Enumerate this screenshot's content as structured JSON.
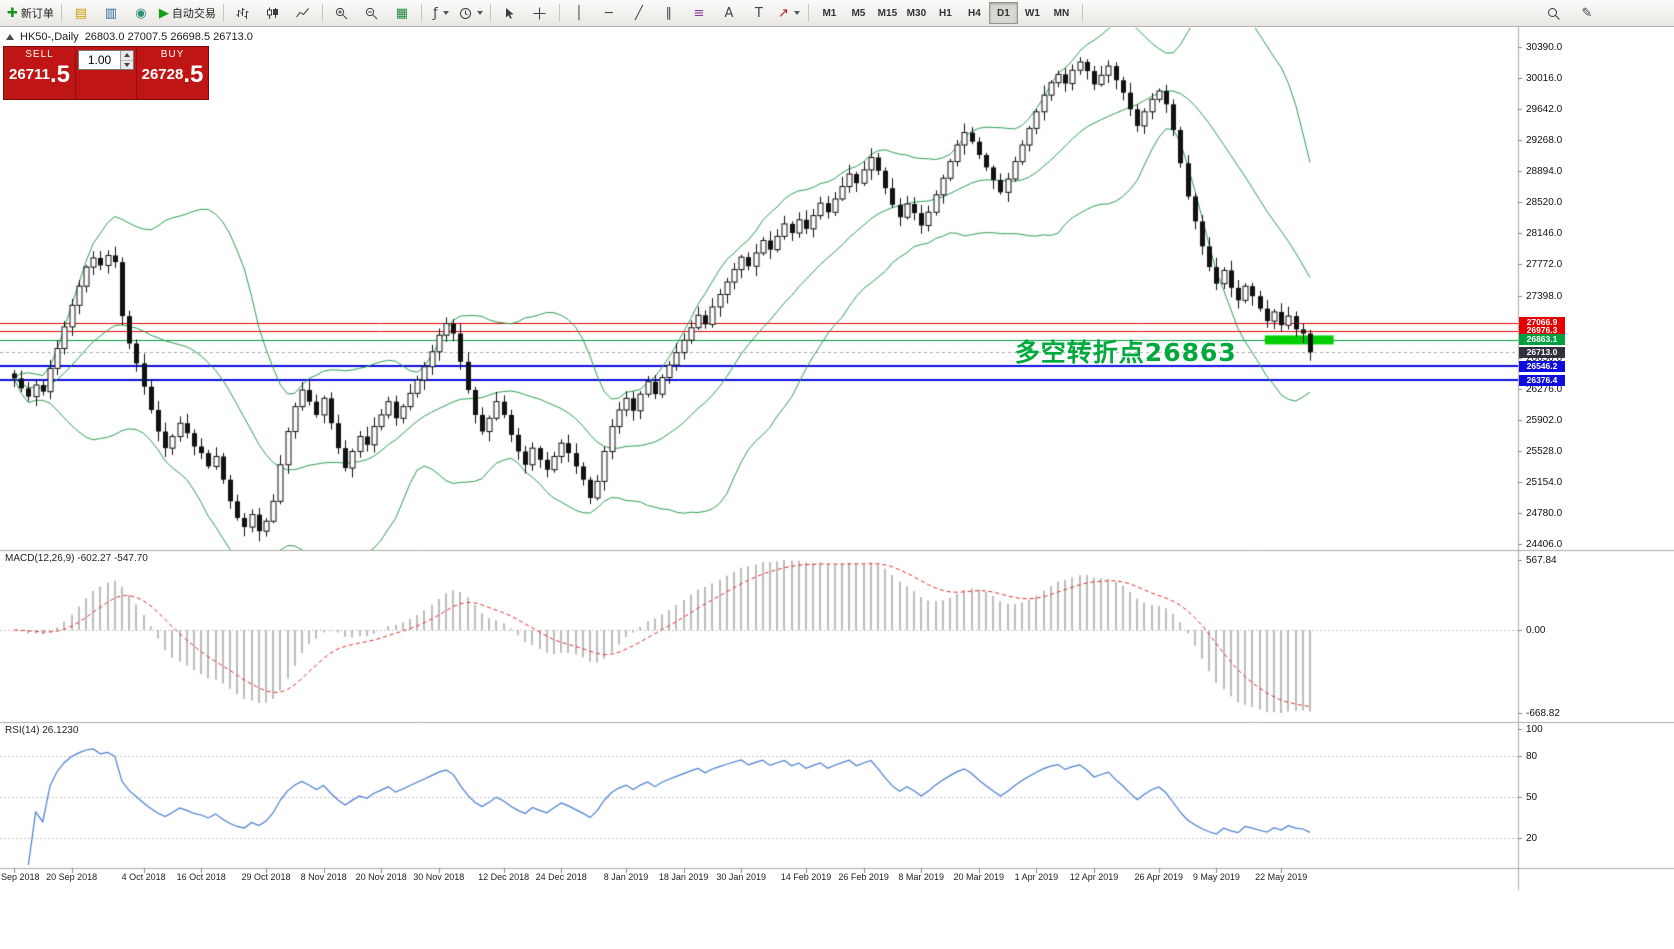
{
  "toolbar": {
    "items": [
      {
        "name": "new-order-button",
        "glyph": "✚",
        "glyph_color": "#149414",
        "label": "新订单"
      },
      {
        "name": "sep"
      },
      {
        "name": "charts-panel-icon",
        "glyph": "▤",
        "glyph_color": "#cf9c00"
      },
      {
        "name": "market-watch-icon",
        "glyph": "▥",
        "glyph_color": "#31699c"
      },
      {
        "name": "support-icon",
        "glyph": "◉",
        "glyph_color": "#2a8f7a"
      },
      {
        "name": "autotrading-button",
        "glyph": "▶",
        "glyph_color": "#12a012",
        "label": "自动交易"
      },
      {
        "name": "sep"
      },
      {
        "name": "bar-chart-icon",
        "svg": "bars"
      },
      {
        "name": "candlestick-chart-icon",
        "svg": "candles"
      },
      {
        "name": "line-chart-icon",
        "svg": "linechart"
      },
      {
        "name": "sep"
      },
      {
        "name": "zoom-in-icon",
        "svg": "zoomin"
      },
      {
        "name": "zoom-out-icon",
        "svg": "zoomout"
      },
      {
        "name": "tile-windows-icon",
        "glyph": "▦",
        "glyph_color": "#1f8a3d"
      },
      {
        "name": "sep"
      },
      {
        "name": "indicators-button",
        "glyph": "ƒ",
        "glyph_color": "#444",
        "dropdown": true
      },
      {
        "name": "periods-button",
        "svg": "clock",
        "dropdown": true
      },
      {
        "name": "sep"
      },
      {
        "name": "cursor-icon",
        "svg": "cursor"
      },
      {
        "name": "crosshair-icon",
        "svg": "crosshair"
      },
      {
        "name": "sep"
      },
      {
        "name": "vertical-line-icon",
        "glyph": "│",
        "glyph_color": "#444"
      },
      {
        "name": "horizontal-line-icon",
        "glyph": "─",
        "glyph_color": "#444"
      },
      {
        "name": "trendline-icon",
        "glyph": "╱",
        "glyph_color": "#444"
      },
      {
        "name": "channel-icon",
        "glyph": "∥",
        "glyph_color": "#444"
      },
      {
        "name": "fibonacci-icon",
        "glyph": "≡",
        "glyph_color": "#8b3aa6"
      },
      {
        "name": "text-icon",
        "glyph": "A",
        "glyph_color": "#444"
      },
      {
        "name": "label-icon",
        "glyph": "T",
        "glyph_color": "#444"
      },
      {
        "name": "arrows-button",
        "glyph": "↗",
        "glyph_color": "#b22222",
        "dropdown": true
      },
      {
        "name": "sep"
      },
      {
        "name": "timeframes"
      },
      {
        "name": "sep"
      }
    ],
    "timeframes": [
      "M1",
      "M5",
      "M15",
      "M30",
      "H1",
      "H4",
      "D1",
      "W1",
      "MN"
    ],
    "active_timeframe": "D1",
    "right_items": [
      {
        "name": "search-icon",
        "svg": "magnifier"
      },
      {
        "name": "new-window-icon",
        "glyph": "✎",
        "glyph_color": "#444"
      }
    ]
  },
  "chart": {
    "symbol": "HK50-,Daily",
    "ohlc_line": "26803.0 27007.5 26698.5 26713.0",
    "trade_panel": {
      "sell_label": "SELL",
      "buy_label": "BUY",
      "sell_main": "26711",
      "sell_frac": ".5",
      "buy_main": "26728",
      "buy_frac": ".5",
      "lot": "1.00"
    },
    "annotation": {
      "text": "多空转折点26863",
      "bar": 139,
      "price": 26810,
      "color": "#00a93c"
    },
    "levels": [
      {
        "label": "27066.9",
        "price": 27066.9,
        "line_color": "#e60000",
        "tag_color": "#e60000",
        "line_width": 1,
        "line_style": "solid"
      },
      {
        "label": "26976.3",
        "price": 26976.3,
        "line_color": "#e60000",
        "tag_color": "#e60000",
        "line_width": 1,
        "line_style": "solid"
      },
      {
        "label": "26863.1",
        "price": 26863.1,
        "line_color": "#00a040",
        "tag_color": "#00a040",
        "line_width": 1,
        "line_style": "solid"
      },
      {
        "label": "26713.0",
        "price": 26713.0,
        "line_color": "#a8a8a8",
        "tag_color": "#30303e",
        "line_width": 1,
        "line_style": "dashed",
        "current": true
      },
      {
        "label": "26546.2",
        "price": 26546.2,
        "line_color": "#0d0de0",
        "tag_color": "#0d0de0",
        "line_width": 2,
        "line_style": "solid"
      },
      {
        "label": "26376.4",
        "price": 26376.4,
        "line_color": "#0d0de0",
        "tag_color": "#0d0de0",
        "line_width": 2,
        "line_style": "solid"
      }
    ],
    "highlight": {
      "price": 26863,
      "bar_start": 174,
      "bar_end": 183,
      "color": "#00ce00",
      "thickness": 9
    },
    "y_axis": {
      "labels": [
        "30390.0",
        "30016.0",
        "29642.0",
        "29268.0",
        "28894.0",
        "28520.0",
        "28146.0",
        "27772.0",
        "27398.0",
        "27024.0",
        "26650.0",
        "26276.0",
        "25902.0",
        "25528.0",
        "25154.0",
        "24780.0",
        "24406.0"
      ]
    }
  },
  "macd": {
    "label": "MACD(12,26,9) -602.27 -547.70",
    "axis_labels": [
      "567.84",
      "0.00",
      "-668.82"
    ]
  },
  "rsi": {
    "label": "RSI(14) 26.1230",
    "axis_labels": [
      "100",
      "80",
      "50",
      "20"
    ],
    "levels": [
      80,
      50,
      20
    ]
  },
  "time_axis": {
    "dates": [
      {
        "i": 0,
        "t": "10 Sep 2018"
      },
      {
        "i": 8,
        "t": "20 Sep 2018"
      },
      {
        "i": 18,
        "t": "4 Oct 2018"
      },
      {
        "i": 26,
        "t": "16 Oct 2018"
      },
      {
        "i": 35,
        "t": "29 Oct 2018"
      },
      {
        "i": 43,
        "t": "8 Nov 2018"
      },
      {
        "i": 51,
        "t": "20 Nov 2018"
      },
      {
        "i": 59,
        "t": "30 Nov 2018"
      },
      {
        "i": 68,
        "t": "12 Dec 2018"
      },
      {
        "i": 76,
        "t": "24 Dec 2018"
      },
      {
        "i": 85,
        "t": "8 Jan 2019"
      },
      {
        "i": 93,
        "t": "18 Jan 2019"
      },
      {
        "i": 101,
        "t": "30 Jan 2019"
      },
      {
        "i": 110,
        "t": "14 Feb 2019"
      },
      {
        "i": 118,
        "t": "26 Feb 2019"
      },
      {
        "i": 126,
        "t": "8 Mar 2019"
      },
      {
        "i": 134,
        "t": "20 Mar 2019"
      },
      {
        "i": 142,
        "t": "1 Apr 2019"
      },
      {
        "i": 150,
        "t": "12 Apr 2019"
      },
      {
        "i": 159,
        "t": "26 Apr 2019"
      },
      {
        "i": 167,
        "t": "9 May 2019"
      },
      {
        "i": 176,
        "t": "22 May 2019"
      }
    ]
  },
  "chart_data": {
    "type": "candlestick",
    "symbol": "HK50-",
    "timeframe": "Daily",
    "ohlc_current": {
      "open": 26803.0,
      "high": 27007.5,
      "low": 26698.5,
      "close": 26713.0
    },
    "price_range": {
      "max": 30390.0,
      "min": 24406.0
    },
    "indicators": {
      "bollinger": {
        "period": 20,
        "deviation": 2
      },
      "macd": {
        "fast": 12,
        "slow": 26,
        "signal": 9,
        "value": -602.27,
        "signal_value": -547.7
      },
      "rsi": {
        "period": 14,
        "value": 26.123
      }
    },
    "closes": [
      26400,
      26280,
      26180,
      26320,
      26240,
      26520,
      26760,
      27020,
      27280,
      27510,
      27740,
      27850,
      27760,
      27880,
      27800,
      27150,
      26820,
      26580,
      26300,
      26020,
      25760,
      25560,
      25700,
      25860,
      25740,
      25580,
      25500,
      25340,
      25460,
      25180,
      24920,
      24720,
      24610,
      24760,
      24560,
      24680,
      24920,
      25360,
      25760,
      26060,
      26260,
      26120,
      25960,
      26160,
      25860,
      25560,
      25320,
      25520,
      25700,
      25600,
      25820,
      25960,
      26120,
      25920,
      26060,
      26220,
      26380,
      26540,
      26720,
      26920,
      27060,
      26940,
      26600,
      26260,
      25960,
      25760,
      25920,
      26120,
      25960,
      25720,
      25520,
      25360,
      25560,
      25420,
      25300,
      25460,
      25620,
      25500,
      25340,
      25180,
      24960,
      25160,
      25520,
      25820,
      26020,
      26160,
      26010,
      26210,
      26360,
      26210,
      26410,
      26560,
      26710,
      26860,
      27010,
      27160,
      27050,
      27260,
      27410,
      27560,
      27710,
      27860,
      27750,
      27910,
      28060,
      27950,
      28110,
      28260,
      28150,
      28310,
      28200,
      28360,
      28510,
      28400,
      28560,
      28710,
      28860,
      28750,
      28910,
      29060,
      28900,
      28690,
      28490,
      28340,
      28500,
      28390,
      28240,
      28400,
      28610,
      28810,
      29010,
      29210,
      29360,
      29250,
      29090,
      28940,
      28790,
      28640,
      28800,
      29010,
      29210,
      29410,
      29610,
      29810,
      29960,
      30060,
      29950,
      30110,
      30210,
      30100,
      29940,
      30050,
      30160,
      29990,
      29840,
      29640,
      29440,
      29610,
      29760,
      29860,
      29700,
      29390,
      28990,
      28590,
      28290,
      27990,
      27740,
      27540,
      27700,
      27490,
      27340,
      27510,
      27390,
      27240,
      27090,
      27200,
      27040,
      27150,
      26990,
      26940,
      26713
    ]
  }
}
